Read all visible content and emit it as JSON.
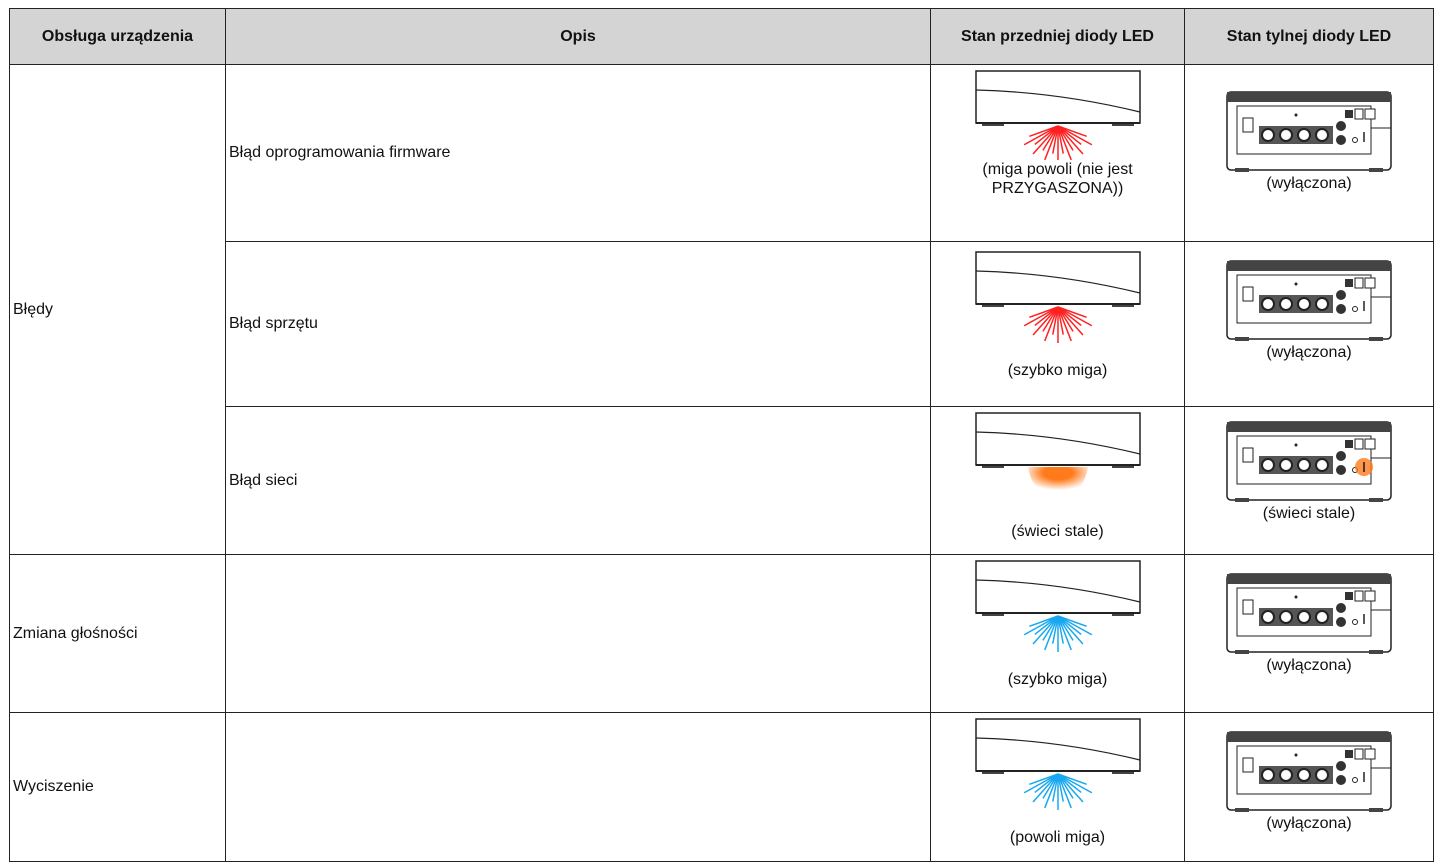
{
  "table": {
    "header": [
      "Obsługa urządzenia",
      "Opis",
      "Stan przedniej diody LED",
      "Stan tylnej diody LED"
    ],
    "rows": [
      {
        "device": "Błędy",
        "description": "Błąd oprogramowania firmware",
        "front": "(miga powoli (nie jest PRZYGASZONA))",
        "rear": "(wyłączona)"
      },
      {
        "description": "Błąd sprzętu",
        "front": "(szybko miga)",
        "rear": "(wyłączona)"
      },
      {
        "description": "Błąd sieci",
        "front": "(świeci stale)",
        "rear": "(świeci stale)"
      },
      {
        "device": "Zmiana głośności",
        "front": "(szybko miga)",
        "rear": "(wyłączona)"
      },
      {
        "device": "Wyciszenie",
        "front": "(powoli miga)",
        "rear": "(wyłączona)"
      }
    ]
  }
}
